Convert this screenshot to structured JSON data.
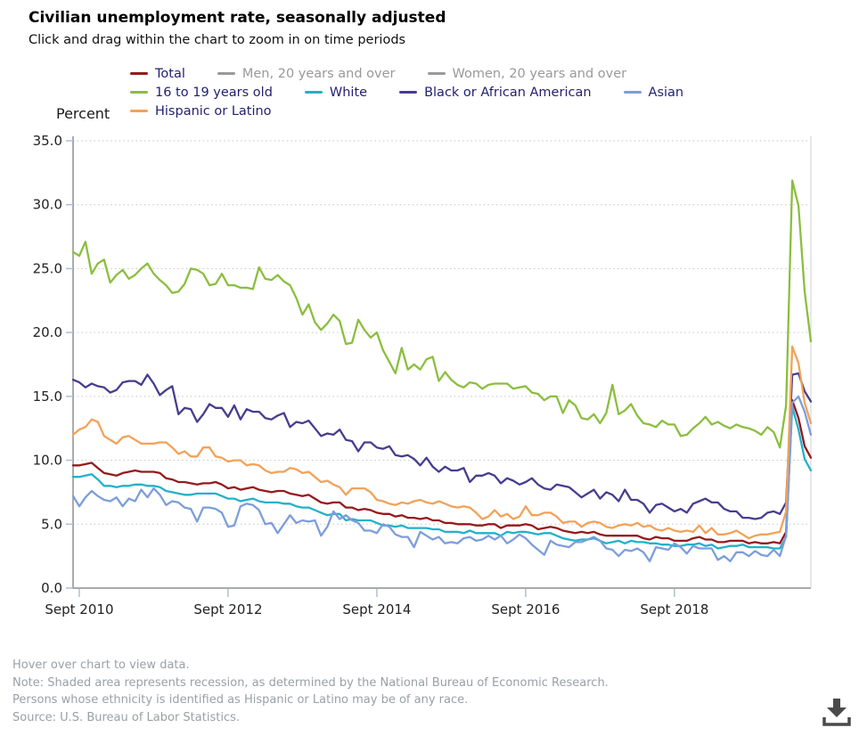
{
  "header": {
    "title": "Civilian unemployment rate, seasonally adjusted",
    "subtitle": "Click and drag within the chart to zoom in on time periods"
  },
  "y_axis_title": "Percent",
  "colors": {
    "legend_text_active": "#221f72",
    "legend_text_inactive": "#999999",
    "axis_line": "#8f8f8f",
    "grid_line": "#c4c4c4",
    "tick_mark": "#aebfd4",
    "axis_text": "#222222"
  },
  "chart_data": {
    "type": "line",
    "months": {
      "start": "2010-08",
      "end": "2020-07",
      "count": 120
    },
    "ylim": [
      0,
      35
    ],
    "y_tick_values": [
      0,
      5,
      10,
      15,
      20,
      25,
      30,
      35
    ],
    "y_tick_labels": [
      "0.0",
      "5.0",
      "10.0",
      "15.0",
      "20.0",
      "25.0",
      "30.0",
      "35.0"
    ],
    "x_ticks": [
      {
        "label": "Sept 2010",
        "month_index": 1
      },
      {
        "label": "Sept 2012",
        "month_index": 25
      },
      {
        "label": "Sept 2014",
        "month_index": 49
      },
      {
        "label": "Sept 2016",
        "month_index": 73
      },
      {
        "label": "Sept 2018",
        "month_index": 97
      }
    ],
    "grid": "horizontal-dotted",
    "legend_position": "top",
    "legend_rows": [
      [
        "Total",
        "Men, 20 years and over",
        "Women, 20 years and over"
      ],
      [
        "16 to 19 years old",
        "White",
        "Black or African American",
        "Asian"
      ],
      [
        "Hispanic or Latino"
      ]
    ],
    "series": [
      {
        "name": "Total",
        "color": "#941a1c",
        "visible": true,
        "values": [
          9.6,
          9.6,
          9.7,
          9.8,
          9.4,
          9.0,
          8.9,
          8.8,
          9.0,
          9.1,
          9.2,
          9.1,
          9.1,
          9.1,
          9.0,
          8.6,
          8.5,
          8.3,
          8.3,
          8.2,
          8.1,
          8.2,
          8.2,
          8.3,
          8.1,
          7.8,
          7.9,
          7.7,
          7.8,
          7.9,
          7.7,
          7.6,
          7.5,
          7.6,
          7.6,
          7.4,
          7.3,
          7.2,
          7.3,
          7.0,
          6.7,
          6.6,
          6.7,
          6.7,
          6.3,
          6.3,
          6.1,
          6.2,
          6.1,
          5.9,
          5.8,
          5.8,
          5.6,
          5.7,
          5.5,
          5.5,
          5.4,
          5.5,
          5.3,
          5.3,
          5.1,
          5.1,
          5.0,
          5.0,
          5.0,
          4.9,
          4.9,
          5.0,
          5.0,
          4.7,
          4.9,
          4.9,
          4.9,
          5.0,
          4.9,
          4.6,
          4.7,
          4.8,
          4.7,
          4.5,
          4.4,
          4.3,
          4.4,
          4.3,
          4.4,
          4.2,
          4.1,
          4.1,
          4.1,
          4.1,
          4.1,
          4.1,
          3.9,
          3.8,
          4.0,
          3.9,
          3.9,
          3.7,
          3.7,
          3.7,
          3.9,
          4.0,
          3.8,
          3.8,
          3.6,
          3.6,
          3.7,
          3.7,
          3.7,
          3.5,
          3.6,
          3.5,
          3.5,
          3.6,
          3.5,
          4.4,
          14.7,
          13.3,
          11.1,
          10.2
        ]
      },
      {
        "name": "Men, 20 years and over",
        "color": "#999999",
        "visible": false,
        "values": []
      },
      {
        "name": "Women, 20 years and over",
        "color": "#999999",
        "visible": false,
        "values": []
      },
      {
        "name": "16 to 19 years old",
        "color": "#8bbe3e",
        "visible": true,
        "values": [
          26.3,
          26.0,
          27.1,
          24.6,
          25.4,
          25.7,
          23.9,
          24.5,
          24.9,
          24.2,
          24.5,
          25.0,
          25.4,
          24.6,
          24.1,
          23.7,
          23.1,
          23.2,
          23.8,
          25.0,
          24.9,
          24.6,
          23.7,
          23.8,
          24.6,
          23.7,
          23.7,
          23.5,
          23.5,
          23.4,
          25.1,
          24.2,
          24.1,
          24.5,
          24.0,
          23.7,
          22.7,
          21.4,
          22.2,
          20.8,
          20.2,
          20.7,
          21.4,
          20.9,
          19.1,
          19.2,
          21.0,
          20.2,
          19.6,
          20.0,
          18.6,
          17.7,
          16.8,
          18.8,
          17.1,
          17.5,
          17.1,
          17.9,
          18.1,
          16.2,
          16.9,
          16.3,
          15.9,
          15.7,
          16.1,
          16.0,
          15.6,
          15.9,
          16.0,
          16.0,
          16.0,
          15.6,
          15.7,
          15.8,
          15.3,
          15.2,
          14.7,
          15.0,
          15.0,
          13.7,
          14.7,
          14.3,
          13.3,
          13.2,
          13.6,
          12.9,
          13.7,
          15.9,
          13.6,
          13.9,
          14.4,
          13.5,
          12.9,
          12.8,
          12.6,
          13.1,
          12.8,
          12.8,
          11.9,
          12.0,
          12.5,
          12.9,
          13.4,
          12.8,
          13.0,
          12.7,
          12.5,
          12.8,
          12.6,
          12.5,
          12.3,
          12.0,
          12.6,
          12.2,
          11.0,
          14.3,
          31.9,
          29.9,
          23.2,
          19.3
        ]
      },
      {
        "name": "White",
        "color": "#22b1ca",
        "visible": true,
        "values": [
          8.7,
          8.7,
          8.8,
          8.9,
          8.5,
          8.0,
          8.0,
          7.9,
          8.0,
          8.0,
          8.1,
          8.1,
          8.0,
          8.0,
          7.9,
          7.6,
          7.5,
          7.4,
          7.3,
          7.3,
          7.4,
          7.4,
          7.4,
          7.4,
          7.2,
          7.0,
          7.0,
          6.8,
          6.9,
          7.0,
          6.8,
          6.7,
          6.7,
          6.7,
          6.6,
          6.6,
          6.4,
          6.3,
          6.3,
          6.1,
          5.9,
          5.7,
          5.8,
          5.8,
          5.3,
          5.4,
          5.3,
          5.3,
          5.3,
          5.1,
          4.9,
          4.9,
          4.8,
          4.9,
          4.7,
          4.7,
          4.7,
          4.7,
          4.6,
          4.6,
          4.4,
          4.4,
          4.4,
          4.3,
          4.5,
          4.3,
          4.3,
          4.3,
          4.3,
          4.1,
          4.4,
          4.3,
          4.4,
          4.4,
          4.3,
          4.2,
          4.3,
          4.3,
          4.1,
          3.9,
          3.8,
          3.7,
          3.8,
          3.8,
          3.9,
          3.7,
          3.5,
          3.6,
          3.7,
          3.5,
          3.7,
          3.6,
          3.6,
          3.5,
          3.5,
          3.4,
          3.4,
          3.3,
          3.3,
          3.4,
          3.4,
          3.5,
          3.3,
          3.4,
          3.1,
          3.2,
          3.3,
          3.3,
          3.4,
          3.2,
          3.2,
          3.2,
          3.2,
          3.1,
          3.1,
          4.0,
          14.2,
          12.4,
          10.1,
          9.2
        ]
      },
      {
        "name": "Black or African American",
        "color": "#463d8f",
        "visible": true,
        "values": [
          16.3,
          16.1,
          15.7,
          16.0,
          15.8,
          15.7,
          15.3,
          15.5,
          16.1,
          16.2,
          16.2,
          15.9,
          16.7,
          16.0,
          15.1,
          15.5,
          15.8,
          13.6,
          14.1,
          14.0,
          13.0,
          13.6,
          14.4,
          14.1,
          14.1,
          13.4,
          14.3,
          13.2,
          14.0,
          13.8,
          13.8,
          13.3,
          13.2,
          13.5,
          13.7,
          12.6,
          13.0,
          12.9,
          13.1,
          12.5,
          11.9,
          12.1,
          12.0,
          12.4,
          11.6,
          11.5,
          10.7,
          11.4,
          11.4,
          11.0,
          10.9,
          11.1,
          10.4,
          10.3,
          10.4,
          10.1,
          9.6,
          10.2,
          9.5,
          9.1,
          9.5,
          9.2,
          9.2,
          9.4,
          8.3,
          8.8,
          8.8,
          9.0,
          8.8,
          8.2,
          8.6,
          8.4,
          8.1,
          8.3,
          8.6,
          8.1,
          7.8,
          7.7,
          8.1,
          8.0,
          7.9,
          7.5,
          7.1,
          7.4,
          7.7,
          7.0,
          7.5,
          7.3,
          6.8,
          7.7,
          6.9,
          6.9,
          6.6,
          5.9,
          6.5,
          6.6,
          6.3,
          6.0,
          6.2,
          5.9,
          6.6,
          6.8,
          7.0,
          6.7,
          6.7,
          6.2,
          6.0,
          6.0,
          5.5,
          5.5,
          5.4,
          5.5,
          5.9,
          6.0,
          5.8,
          6.7,
          16.7,
          16.8,
          15.4,
          14.6
        ]
      },
      {
        "name": "Asian",
        "color": "#7d9ddb",
        "visible": true,
        "values": [
          7.2,
          6.4,
          7.1,
          7.6,
          7.2,
          6.9,
          6.8,
          7.1,
          6.4,
          7.0,
          6.8,
          7.7,
          7.1,
          7.8,
          7.3,
          6.5,
          6.8,
          6.7,
          6.3,
          6.2,
          5.2,
          6.3,
          6.3,
          6.2,
          5.9,
          4.8,
          4.9,
          6.4,
          6.6,
          6.5,
          6.1,
          5.0,
          5.1,
          4.3,
          5.0,
          5.7,
          5.1,
          5.3,
          5.2,
          5.3,
          4.1,
          4.8,
          6.0,
          5.4,
          5.7,
          5.3,
          5.1,
          4.5,
          4.5,
          4.3,
          5.0,
          4.8,
          4.2,
          4.0,
          4.0,
          3.2,
          4.4,
          4.1,
          3.8,
          4.0,
          3.5,
          3.6,
          3.5,
          3.9,
          4.0,
          3.7,
          3.8,
          4.1,
          3.8,
          4.1,
          3.5,
          3.8,
          4.2,
          3.9,
          3.4,
          3.0,
          2.6,
          3.7,
          3.4,
          3.3,
          3.2,
          3.6,
          3.6,
          3.8,
          4.0,
          3.7,
          3.1,
          3.0,
          2.5,
          3.0,
          2.9,
          3.1,
          2.8,
          2.1,
          3.2,
          3.1,
          3.0,
          3.5,
          3.2,
          2.7,
          3.3,
          3.1,
          3.1,
          3.1,
          2.2,
          2.5,
          2.1,
          2.8,
          2.8,
          2.5,
          2.9,
          2.6,
          2.5,
          3.0,
          2.5,
          4.1,
          14.5,
          15.0,
          13.8,
          12.0
        ]
      },
      {
        "name": "Hispanic or Latino",
        "color": "#f2a258",
        "visible": true,
        "values": [
          12.0,
          12.4,
          12.6,
          13.2,
          13.0,
          11.9,
          11.6,
          11.3,
          11.8,
          11.9,
          11.6,
          11.3,
          11.3,
          11.3,
          11.4,
          11.4,
          11.0,
          10.5,
          10.7,
          10.3,
          10.3,
          11.0,
          11.0,
          10.3,
          10.2,
          9.9,
          10.0,
          10.0,
          9.6,
          9.7,
          9.6,
          9.2,
          9.0,
          9.1,
          9.1,
          9.4,
          9.3,
          9.0,
          9.1,
          8.7,
          8.3,
          8.4,
          8.1,
          7.9,
          7.3,
          7.8,
          7.8,
          7.8,
          7.5,
          6.9,
          6.8,
          6.6,
          6.5,
          6.7,
          6.6,
          6.8,
          6.9,
          6.7,
          6.6,
          6.8,
          6.6,
          6.4,
          6.3,
          6.4,
          6.3,
          5.9,
          5.4,
          5.6,
          6.1,
          5.6,
          5.8,
          5.4,
          5.6,
          6.4,
          5.7,
          5.7,
          5.9,
          5.9,
          5.6,
          5.1,
          5.2,
          5.2,
          4.8,
          5.1,
          5.2,
          5.1,
          4.8,
          4.7,
          4.9,
          5.0,
          4.9,
          5.1,
          4.8,
          4.9,
          4.6,
          4.5,
          4.7,
          4.5,
          4.4,
          4.5,
          4.4,
          4.9,
          4.3,
          4.7,
          4.2,
          4.2,
          4.3,
          4.5,
          4.2,
          3.9,
          4.1,
          4.2,
          4.2,
          4.3,
          4.4,
          6.0,
          18.9,
          17.6,
          14.5,
          12.9
        ]
      }
    ]
  },
  "footer": {
    "lines": [
      "Hover over chart to view data.",
      "Note: Shaded area represents recession, as determined by the National Bureau of Economic Research.",
      "Persons whose ethnicity is identified as Hispanic or Latino may be of any race.",
      "Source: U.S. Bureau of Labor Statistics."
    ]
  },
  "download": {
    "tooltip": "Download"
  }
}
